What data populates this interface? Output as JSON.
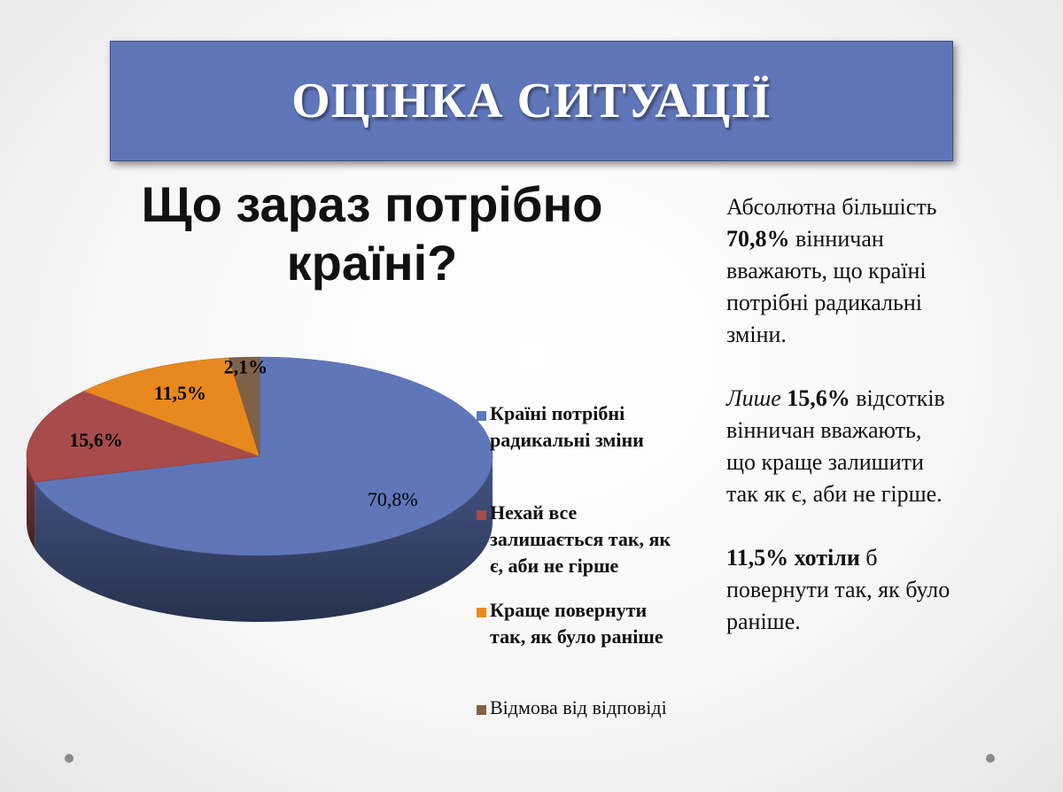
{
  "banner": {
    "title": "ОЦІНКА СИТУАЦІЇ"
  },
  "question": {
    "line1": "Що зараз потрібно",
    "line2": "країні?"
  },
  "chart_data": {
    "type": "pie",
    "title": "Що зараз потрібно країні?",
    "style": "3d",
    "slices": [
      {
        "label": "Країні потрібні радикальні зміни",
        "value": 70.8,
        "value_label": "70,8%",
        "color": "#5f76b9"
      },
      {
        "label": "Нехай все залишається так, як є, аби не гірше",
        "value": 15.6,
        "value_label": "15,6%",
        "color": "#a84b4b"
      },
      {
        "label": "Краще повернути так, як було раніше",
        "value": 11.5,
        "value_label": "11,5%",
        "color": "#e8891f"
      },
      {
        "label": "Відмова від відповіді",
        "value": 2.1,
        "value_label": "2,1%",
        "color": "#7f6147"
      }
    ],
    "legend_position": "right"
  },
  "legend": {
    "items": [
      {
        "lines": [
          "Країні потрібні",
          "радикальні зміни"
        ],
        "color": "#5f76b9",
        "bold": true
      },
      {
        "lines": [
          "Нехай все",
          "залишається так, як",
          "є, аби не гірше"
        ],
        "color": "#a84b4b",
        "bold": true
      },
      {
        "lines": [
          "Краще повернути",
          "так, як було раніше"
        ],
        "color": "#e8891f",
        "bold": true
      },
      {
        "lines": [
          "Відмова від відповіді"
        ],
        "color": "#7f6147",
        "bold": false
      }
    ]
  },
  "summary": {
    "p1": {
      "a": "Абсолютна більшість",
      "b": "70,8%",
      "c": " вінничан",
      "d": "вважають, що країні",
      "e": "потрібні радикальні",
      "f": "зміни."
    },
    "p2": {
      "a": "Лише",
      "b": " 15,6%",
      "c": " відсотків",
      "d": "вінничан вважають,",
      "e": "що краще залишити",
      "f": "так як є, аби не гірше."
    },
    "p3": {
      "a": "11,5% хотіли",
      "b": " б",
      "c": "повернути так, як було",
      "d": "раніше."
    }
  }
}
